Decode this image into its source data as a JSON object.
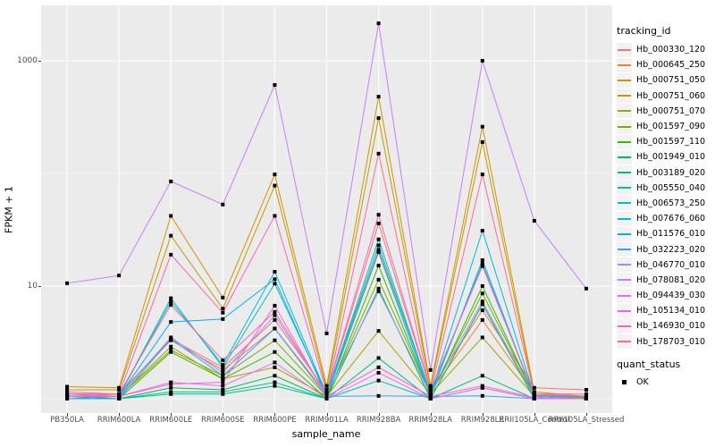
{
  "colors": {
    "panel_bg": "#EBEBEB",
    "grid": "#FFFFFF",
    "tick_text": "#4D4D4D",
    "axis_text": "#000000",
    "legend_key_bg": "#F2F2F2",
    "point_color": "#000000"
  },
  "chart_data": {
    "type": "line",
    "title": "",
    "xlabel": "sample_name",
    "ylabel": "FPKM + 1",
    "y_scale": "log10",
    "ylim": [
      1,
      3000
    ],
    "grid": "on",
    "legend_position": "right",
    "y_ticks": [
      {
        "label": "1000",
        "value": 1000
      },
      {
        "label": "10",
        "value": 10
      }
    ],
    "y_major_gridlines": [
      10,
      1000
    ],
    "y_minor_gridlines": [
      1,
      100
    ],
    "categories": [
      "PB350LA",
      "RRIM600LA",
      "RRIM600LE",
      "RRIM600SE",
      "RRIM600PE",
      "RRIM901LA",
      "RRIM928BA",
      "RRIM928LA",
      "RRIM928LE",
      "RRII105LA_Control",
      "RRII105LA_Stressed"
    ],
    "color_legend_title": "tracking_id",
    "shape_legend_title": "quant_status",
    "shape_legend_items": [
      {
        "label": "OK"
      }
    ],
    "series": [
      {
        "name": "Hb_000330_120",
        "color": "#F8766D",
        "values": [
          1.1,
          1.1,
          3.4,
          1.9,
          5.0,
          1.15,
          36,
          1.2,
          6.1,
          1.25,
          1.2
        ]
      },
      {
        "name": "Hb_000645_250",
        "color": "#EA8331",
        "values": [
          1.05,
          1.1,
          3.3,
          1.8,
          4.2,
          1.1,
          21,
          1.15,
          5.0,
          1.1,
          1.05
        ]
      },
      {
        "name": "Hb_000751_050",
        "color": "#D89000",
        "values": [
          1.28,
          1.25,
          42,
          7.9,
          98,
          1.3,
          480,
          1.3,
          260,
          1.15,
          1.05
        ]
      },
      {
        "name": "Hb_000751_060",
        "color": "#C09B00",
        "values": [
          1.2,
          1.2,
          28,
          6.3,
          78,
          1.2,
          310,
          1.25,
          190,
          1.1,
          1.05
        ]
      },
      {
        "name": "Hb_000751_070",
        "color": "#A3A500",
        "values": [
          1.1,
          1.05,
          2.9,
          1.5,
          1.9,
          1.05,
          4.0,
          1.1,
          3.5,
          1.05,
          1.0
        ]
      },
      {
        "name": "Hb_001597_090",
        "color": "#7CAE00",
        "values": [
          1.05,
          1.05,
          2.7,
          1.6,
          3.3,
          1.05,
          11.4,
          1.1,
          8.6,
          1.07,
          1.02
        ]
      },
      {
        "name": "Hb_001597_110",
        "color": "#39B600",
        "values": [
          1.05,
          1.0,
          2.6,
          1.5,
          2.6,
          1.0,
          15.2,
          1.05,
          10.0,
          1.05,
          1.0
        ]
      },
      {
        "name": "Hb_001949_010",
        "color": "#00BB4E",
        "values": [
          1.0,
          1.0,
          1.25,
          1.2,
          1.6,
          1.0,
          9.5,
          1.0,
          6.9,
          1.0,
          1.0
        ]
      },
      {
        "name": "Hb_003189_020",
        "color": "#00BF7D",
        "values": [
          1.0,
          1.0,
          1.1,
          1.1,
          1.3,
          1.0,
          2.3,
          1.0,
          1.6,
          1.0,
          1.0
        ]
      },
      {
        "name": "Hb_005550_040",
        "color": "#00C1A3",
        "values": [
          1.0,
          1.0,
          1.15,
          1.15,
          1.4,
          1.0,
          1.45,
          1.0,
          1.25,
          1.0,
          1.0
        ]
      },
      {
        "name": "Hb_006573_250",
        "color": "#00BFC4",
        "values": [
          1.05,
          1.05,
          7.8,
          1.9,
          10.5,
          1.1,
          23,
          1.1,
          15.8,
          1.05,
          1.0
        ]
      },
      {
        "name": "Hb_007676_060",
        "color": "#00BAE0",
        "values": [
          1.05,
          1.05,
          7.3,
          2.0,
          13.4,
          1.1,
          26,
          1.1,
          31,
          1.07,
          1.04
        ]
      },
      {
        "name": "Hb_011576_010",
        "color": "#00B0F6",
        "values": [
          1.0,
          1.05,
          4.8,
          5.1,
          11.5,
          1.05,
          20,
          1.05,
          17,
          1.05,
          1.0
        ]
      },
      {
        "name": "Hb_032223_020",
        "color": "#35A2FF",
        "values": [
          1.0,
          1.0,
          3.4,
          1.6,
          4.2,
          1.05,
          1.06,
          1.05,
          1.06,
          1.0,
          1.0
        ]
      },
      {
        "name": "Hb_046770_010",
        "color": "#9590FF",
        "values": [
          1.05,
          1.05,
          3.5,
          1.7,
          5.5,
          1.1,
          9.0,
          1.1,
          7.3,
          1.05,
          1.0
        ]
      },
      {
        "name": "Hb_078081_020",
        "color": "#C77CFF",
        "values": [
          10.6,
          12.4,
          85,
          53,
          610,
          3.8,
          2150,
          1.8,
          1000,
          38,
          9.5
        ]
      },
      {
        "name": "Hb_094439_030",
        "color": "#E76BF3",
        "values": [
          1.05,
          1.05,
          1.4,
          1.3,
          2.1,
          1.0,
          1.7,
          1.0,
          1.25,
          1.0,
          1.0
        ]
      },
      {
        "name": "Hb_105134_010",
        "color": "#FA62DB",
        "values": [
          1.1,
          1.05,
          1.35,
          1.4,
          6.7,
          1.05,
          1.9,
          1.05,
          1.3,
          1.02,
          1.0
        ]
      },
      {
        "name": "Hb_146930_010",
        "color": "#FF62BC",
        "values": [
          1.15,
          1.1,
          19,
          5.8,
          42,
          1.15,
          43,
          1.2,
          15,
          1.1,
          1.05
        ]
      },
      {
        "name": "Hb_178703_010",
        "color": "#FF6A98",
        "values": [
          1.1,
          1.1,
          6.8,
          2.2,
          5.9,
          1.1,
          150,
          1.15,
          98,
          1.1,
          1.1
        ]
      }
    ]
  }
}
